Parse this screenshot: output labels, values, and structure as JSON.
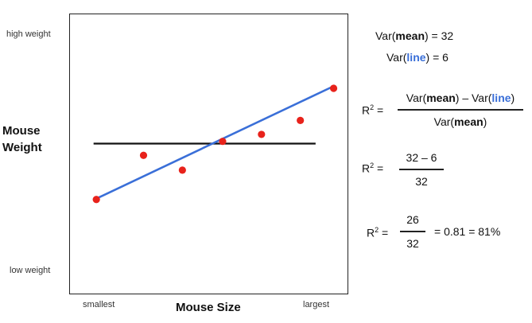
{
  "chart_data": {
    "type": "scatter",
    "title": "",
    "xlabel": "Mouse Size",
    "ylabel": "Mouse Weight",
    "x_tick_labels": [
      "smallest",
      "largest"
    ],
    "y_tick_labels": [
      "high weight",
      "low weight"
    ],
    "xlim": [
      0,
      10
    ],
    "ylim": [
      0,
      10
    ],
    "grid": false,
    "points": [
      {
        "x": 0.95,
        "y": 3.37
      },
      {
        "x": 2.65,
        "y": 4.95
      },
      {
        "x": 4.05,
        "y": 4.42
      },
      {
        "x": 5.5,
        "y": 5.45
      },
      {
        "x": 6.9,
        "y": 5.7
      },
      {
        "x": 8.3,
        "y": 6.2
      },
      {
        "x": 9.5,
        "y": 7.35
      }
    ],
    "mean_line": {
      "y": 5.37
    },
    "fit_line": {
      "x": [
        0.95,
        9.55
      ],
      "y": [
        3.4,
        7.45
      ]
    },
    "colors": {
      "points": "#e8221b",
      "fit_line": "#3a6fd8",
      "mean_line": "#111111"
    }
  },
  "equations": {
    "var_mean": {
      "prefix": "Var(",
      "word": "mean",
      "suffix": ") = 32"
    },
    "var_line": {
      "prefix": "Var(",
      "word": "line",
      "suffix": ") = 6"
    },
    "r2_label": "R",
    "r2_sup": "2",
    "r2_eq": " =",
    "formula_num": {
      "a_pre": "Var(",
      "a_word": "mean",
      "a_post": ") – Var(",
      "b_word": "line",
      "b_post": ")"
    },
    "formula_den": {
      "pre": "Var(",
      "word": "mean",
      "post": ")"
    },
    "step2_num": "32 – 6",
    "step2_den": "32",
    "step3_num": "26",
    "step3_den": "32",
    "step3_result": "= 0.81 = 81%"
  }
}
